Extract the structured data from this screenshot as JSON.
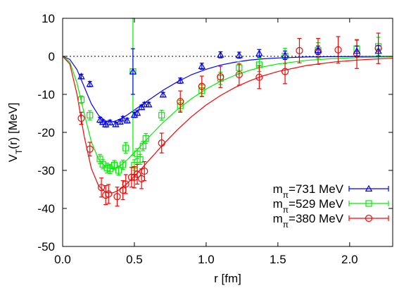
{
  "chart_data": {
    "type": "scatter",
    "xlabel": "r [fm]",
    "ylabel": "V",
    "ylabel_sub": "T",
    "ylabel_suffix": "(r) [MeV]",
    "xlim": [
      0.0,
      2.3
    ],
    "ylim": [
      -50,
      10
    ],
    "xticks": [
      0.0,
      0.5,
      1.0,
      1.5,
      2.0
    ],
    "xtick_labels": [
      "0.0",
      "0.5",
      "1.0",
      "1.5",
      "2.0"
    ],
    "yticks": [
      -50,
      -40,
      -30,
      -20,
      -10,
      0,
      10
    ],
    "ytick_labels": [
      "-50",
      "-40",
      "-30",
      "-20",
      "-10",
      "0",
      "10"
    ],
    "grid": false,
    "zero_line": true,
    "legend_position": "bottom-right",
    "series": [
      {
        "name": "m",
        "name_sub": "π",
        "name_suffix": "=731 MeV",
        "color": "#0000ff",
        "marker": "triangle",
        "fit": [
          [
            0.0,
            0
          ],
          [
            0.05,
            -0.8
          ],
          [
            0.1,
            -3.5
          ],
          [
            0.15,
            -8
          ],
          [
            0.2,
            -12.5
          ],
          [
            0.25,
            -15.5
          ],
          [
            0.3,
            -17
          ],
          [
            0.35,
            -17.2
          ],
          [
            0.4,
            -16.6
          ],
          [
            0.45,
            -15.4
          ],
          [
            0.5,
            -14.1
          ],
          [
            0.55,
            -12.8
          ],
          [
            0.6,
            -11.5
          ],
          [
            0.7,
            -8.9
          ],
          [
            0.8,
            -6.7
          ],
          [
            0.9,
            -4.8
          ],
          [
            1.0,
            -3.4
          ],
          [
            1.1,
            -2.3
          ],
          [
            1.2,
            -1.55
          ],
          [
            1.3,
            -1.0
          ],
          [
            1.4,
            -0.65
          ],
          [
            1.5,
            -0.42
          ],
          [
            1.7,
            -0.17
          ],
          [
            1.9,
            -0.07
          ],
          [
            2.1,
            -0.03
          ],
          [
            2.3,
            -0.01
          ]
        ],
        "points": [
          {
            "x": 0.13,
            "y": -5.3,
            "e": 0.6
          },
          {
            "x": 0.19,
            "y": -7.3,
            "e": 0.7
          },
          {
            "x": 0.26,
            "y": -16.7,
            "e": 0.7
          },
          {
            "x": 0.28,
            "y": -17.3,
            "e": 0.6
          },
          {
            "x": 0.3,
            "y": -17.9,
            "e": 0.7
          },
          {
            "x": 0.33,
            "y": -17.4,
            "e": 0.6
          },
          {
            "x": 0.37,
            "y": -17.9,
            "e": 0.6
          },
          {
            "x": 0.4,
            "y": -17.2,
            "e": 0.6
          },
          {
            "x": 0.42,
            "y": -16.4,
            "e": 0.6
          },
          {
            "x": 0.45,
            "y": -16.9,
            "e": 0.6
          },
          {
            "x": 0.49,
            "y": -4.0,
            "e": 6.0
          },
          {
            "x": 0.5,
            "y": -15.4,
            "e": 0.7
          },
          {
            "x": 0.52,
            "y": -14.9,
            "e": 0.6
          },
          {
            "x": 0.55,
            "y": -13.4,
            "e": 0.6
          },
          {
            "x": 0.57,
            "y": -12.7,
            "e": 0.6
          },
          {
            "x": 0.6,
            "y": -12.7,
            "e": 0.6
          },
          {
            "x": 0.7,
            "y": -10.1,
            "e": 0.6
          },
          {
            "x": 0.82,
            "y": -6.4,
            "e": 0.7
          },
          {
            "x": 0.97,
            "y": -2.6,
            "e": 0.8
          },
          {
            "x": 1.1,
            "y": 0.4,
            "e": 0.8
          },
          {
            "x": 1.23,
            "y": 0.3,
            "e": 0.8
          },
          {
            "x": 1.37,
            "y": 0.8,
            "e": 1.0
          },
          {
            "x": 1.55,
            "y": 0.3,
            "e": 1.1
          },
          {
            "x": 1.78,
            "y": 1.6,
            "e": 1.1
          },
          {
            "x": 2.05,
            "y": 1.4,
            "e": 1.3
          },
          {
            "x": 2.2,
            "y": 1.4,
            "e": 1.4
          }
        ]
      },
      {
        "name": "m",
        "name_sub": "π",
        "name_suffix": "=529 MeV",
        "color": "#00ee00",
        "marker": "square",
        "fit": [
          [
            0.0,
            0
          ],
          [
            0.05,
            -1.5
          ],
          [
            0.1,
            -7
          ],
          [
            0.15,
            -15
          ],
          [
            0.2,
            -22.5
          ],
          [
            0.25,
            -27
          ],
          [
            0.3,
            -29.2
          ],
          [
            0.35,
            -29.6
          ],
          [
            0.4,
            -28.8
          ],
          [
            0.45,
            -27.2
          ],
          [
            0.5,
            -25.3
          ],
          [
            0.55,
            -23.3
          ],
          [
            0.6,
            -21.3
          ],
          [
            0.7,
            -17.4
          ],
          [
            0.8,
            -14
          ],
          [
            0.9,
            -11.1
          ],
          [
            1.0,
            -8.6
          ],
          [
            1.1,
            -6.6
          ],
          [
            1.2,
            -5.0
          ],
          [
            1.3,
            -3.7
          ],
          [
            1.4,
            -2.75
          ],
          [
            1.5,
            -2.0
          ],
          [
            1.7,
            -1.05
          ],
          [
            1.9,
            -0.55
          ],
          [
            2.1,
            -0.28
          ],
          [
            2.3,
            -0.15
          ]
        ],
        "points": [
          {
            "x": 0.13,
            "y": -11.4,
            "e": 1.0
          },
          {
            "x": 0.19,
            "y": -15.5,
            "e": 1.2
          },
          {
            "x": 0.26,
            "y": -27.0,
            "e": 1.2
          },
          {
            "x": 0.28,
            "y": -28.4,
            "e": 1.2
          },
          {
            "x": 0.31,
            "y": -29.4,
            "e": 1.3
          },
          {
            "x": 0.33,
            "y": -29.6,
            "e": 1.2
          },
          {
            "x": 0.36,
            "y": -28.6,
            "e": 1.2
          },
          {
            "x": 0.39,
            "y": -30.0,
            "e": 1.2
          },
          {
            "x": 0.42,
            "y": -28.5,
            "e": 1.2
          },
          {
            "x": 0.44,
            "y": -24.1,
            "e": 1.4
          },
          {
            "x": 0.49,
            "y": -4.0,
            "e": 22
          },
          {
            "x": 0.5,
            "y": -28.6,
            "e": 1.4
          },
          {
            "x": 0.52,
            "y": -25.6,
            "e": 1.3
          },
          {
            "x": 0.54,
            "y": -27.1,
            "e": 1.3
          },
          {
            "x": 0.56,
            "y": -23.6,
            "e": 1.2
          },
          {
            "x": 0.58,
            "y": -21.6,
            "e": 1.3
          },
          {
            "x": 0.69,
            "y": -15.5,
            "e": 1.3
          },
          {
            "x": 0.82,
            "y": -13.0,
            "e": 1.4
          },
          {
            "x": 0.97,
            "y": -9.0,
            "e": 1.5
          },
          {
            "x": 1.1,
            "y": -5.8,
            "e": 1.6
          },
          {
            "x": 1.23,
            "y": -3.0,
            "e": 1.6
          },
          {
            "x": 1.37,
            "y": -2.2,
            "e": 1.8
          },
          {
            "x": 1.55,
            "y": 0.1,
            "e": 2.0
          },
          {
            "x": 1.78,
            "y": 1.6,
            "e": 2.0
          },
          {
            "x": 2.05,
            "y": 2.0,
            "e": 2.2
          },
          {
            "x": 2.2,
            "y": 2.6,
            "e": 2.4
          }
        ]
      },
      {
        "name": "m",
        "name_sub": "π",
        "name_suffix": "=380 MeV",
        "color": "#ff0000",
        "marker": "circle",
        "fit": [
          [
            0.0,
            0
          ],
          [
            0.05,
            -2
          ],
          [
            0.1,
            -10
          ],
          [
            0.15,
            -21
          ],
          [
            0.2,
            -29.5
          ],
          [
            0.25,
            -34
          ],
          [
            0.3,
            -35.8
          ],
          [
            0.35,
            -35.9
          ],
          [
            0.4,
            -35.0
          ],
          [
            0.45,
            -33.4
          ],
          [
            0.5,
            -31.5
          ],
          [
            0.55,
            -29.5
          ],
          [
            0.6,
            -27.4
          ],
          [
            0.7,
            -23.2
          ],
          [
            0.8,
            -19.3
          ],
          [
            0.9,
            -15.8
          ],
          [
            1.0,
            -12.8
          ],
          [
            1.1,
            -10.3
          ],
          [
            1.2,
            -8.2
          ],
          [
            1.3,
            -6.5
          ],
          [
            1.4,
            -5.1
          ],
          [
            1.5,
            -4.0
          ],
          [
            1.7,
            -2.4
          ],
          [
            1.9,
            -1.45
          ],
          [
            2.1,
            -0.85
          ],
          [
            2.3,
            -0.5
          ]
        ],
        "points": [
          {
            "x": 0.13,
            "y": -16.3,
            "e": 1.6
          },
          {
            "x": 0.19,
            "y": -24.4,
            "e": 1.8
          },
          {
            "x": 0.27,
            "y": -34.5,
            "e": 2.5
          },
          {
            "x": 0.3,
            "y": -36.5,
            "e": 2.5
          },
          {
            "x": 0.32,
            "y": -36.2,
            "e": 2.5
          },
          {
            "x": 0.38,
            "y": -36.9,
            "e": 2.5
          },
          {
            "x": 0.42,
            "y": -35.2,
            "e": 2.5
          },
          {
            "x": 0.44,
            "y": -33.6,
            "e": 2.5
          },
          {
            "x": 0.48,
            "y": -31.8,
            "e": 2.6
          },
          {
            "x": 0.5,
            "y": -31.8,
            "e": 2.8
          },
          {
            "x": 0.52,
            "y": -31.0,
            "e": 2.6
          },
          {
            "x": 0.55,
            "y": -32.2,
            "e": 2.6
          },
          {
            "x": 0.57,
            "y": -30.2,
            "e": 2.5
          },
          {
            "x": 0.69,
            "y": -22.8,
            "e": 2.6
          },
          {
            "x": 0.82,
            "y": -11.9,
            "e": 2.8
          },
          {
            "x": 0.97,
            "y": -7.9,
            "e": 2.7
          },
          {
            "x": 1.1,
            "y": -5.4,
            "e": 2.8
          },
          {
            "x": 1.23,
            "y": -4.8,
            "e": 2.8
          },
          {
            "x": 1.37,
            "y": -5.5,
            "e": 3.0
          },
          {
            "x": 1.55,
            "y": -4.0,
            "e": 3.2
          },
          {
            "x": 1.65,
            "y": 1.5,
            "e": 3.2
          },
          {
            "x": 1.78,
            "y": 1.3,
            "e": 3.4
          },
          {
            "x": 1.92,
            "y": 1.7,
            "e": 3.5
          },
          {
            "x": 2.05,
            "y": 0.6,
            "e": 3.8
          },
          {
            "x": 2.2,
            "y": 2.1,
            "e": 4.0
          }
        ]
      }
    ]
  }
}
